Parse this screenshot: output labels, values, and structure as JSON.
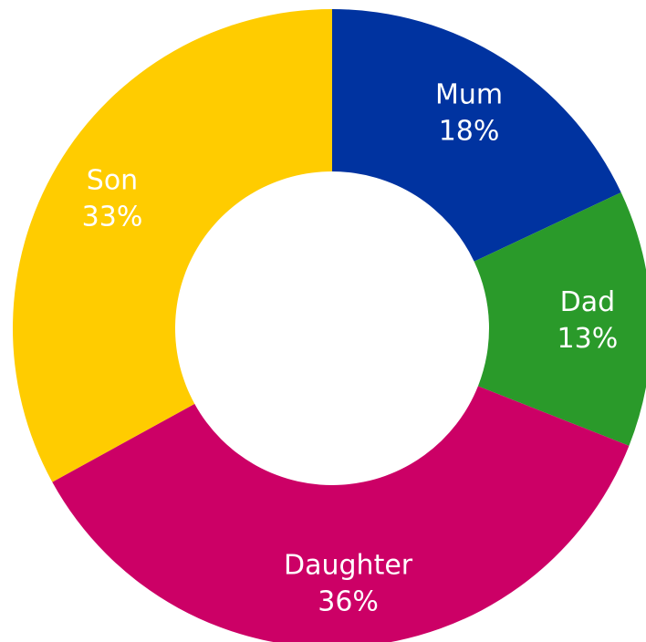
{
  "chart_data": {
    "type": "pie",
    "subtype": "donut",
    "title": "",
    "slices": [
      {
        "label": "Mum",
        "value": 18,
        "value_label": "18%",
        "color": "#0033A0"
      },
      {
        "label": "Dad",
        "value": 13,
        "value_label": "13%",
        "color": "#2A9A2A"
      },
      {
        "label": "Daughter",
        "value": 36,
        "value_label": "36%",
        "color": "#CC0066"
      },
      {
        "label": "Son",
        "value": 33,
        "value_label": "33%",
        "color": "#FFCC00"
      }
    ],
    "start_angle": "12 o'clock",
    "direction": "clockwise",
    "legend": "none"
  }
}
